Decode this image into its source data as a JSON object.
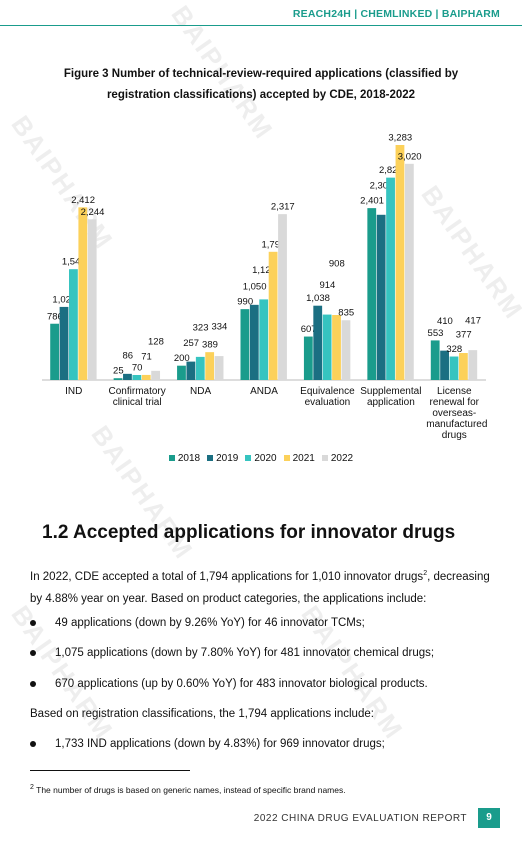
{
  "header": {
    "brand": "REACH24H | CHEMLINKED | BAIPHARM"
  },
  "watermark": "BAIPHARM",
  "chart_data": {
    "type": "bar",
    "title": "Figure 3 Number of technical-review-required applications (classified by registration classifications) accepted by CDE, 2018-2022",
    "categories": [
      "IND",
      "Confirmatory clinical trial",
      "NDA",
      "ANDA",
      "Equivalence evaluation",
      "Supplemental application",
      "License renewal for overseas-manufactured drugs"
    ],
    "series": [
      {
        "name": "2018",
        "color": "#1a9c8c",
        "values": [
          786,
          25,
          200,
          990,
          607,
          2401,
          553
        ],
        "value_labels": [
          "786",
          "25",
          "200",
          "990",
          "607",
          "2,401",
          "553"
        ]
      },
      {
        "name": "2019",
        "color": "#1b6f82",
        "values": [
          1021,
          86,
          257,
          1050,
          1038,
          2308,
          410
        ],
        "value_labels": [
          "1,021",
          "86",
          "257",
          "1,050",
          "1,038",
          "2,308",
          "410"
        ]
      },
      {
        "name": "2020",
        "color": "#36c4c0",
        "values": [
          1548,
          70,
          323,
          1126,
          914,
          2827,
          328
        ],
        "value_labels": [
          "1,548",
          "70",
          "323",
          "1,126",
          "914",
          "2,827",
          "328"
        ]
      },
      {
        "name": "2021",
        "color": "#fcd15a",
        "values": [
          2412,
          71,
          389,
          1791,
          908,
          3283,
          377
        ],
        "value_labels": [
          "2,412",
          "71",
          "389",
          "1,791",
          "908",
          "3,283",
          "377"
        ]
      },
      {
        "name": "2022",
        "color": "#d9d9d9",
        "values": [
          2244,
          128,
          334,
          2317,
          835,
          3020,
          417
        ],
        "value_labels": [
          "2,244",
          "128",
          "334",
          "2,317",
          "835",
          "3,020",
          "417"
        ]
      }
    ]
  },
  "section": {
    "heading": "1.2 Accepted applications for innovator drugs",
    "intro": {
      "text_before": "In 2022, CDE accepted a total of 1,794 applications for 1,010 innovator drugs",
      "footnote_ref": "2",
      "text_after": ", decreasing by 4.88% year on year. Based on product categories, the applications include:"
    },
    "category_bullets": [
      "49 applications (down by 9.26% YoY) for 46 innovator TCMs;",
      "1,075 applications (down by 7.80% YoY) for 481 innovator chemical drugs;",
      "670 applications (up by 0.60% YoY) for 483 innovator biological products."
    ],
    "registration_intro": "Based on registration classifications, the 1,794 applications include:",
    "registration_bullets": [
      "1,733 IND applications (down by 4.83%) for 969 innovator drugs;"
    ]
  },
  "footnote": {
    "marker": "2",
    "text": "The number of drugs is based on generic names, instead of specific brand names."
  },
  "footer": {
    "report": "2022 CHINA DRUG EVALUATION REPORT",
    "page": "9"
  }
}
